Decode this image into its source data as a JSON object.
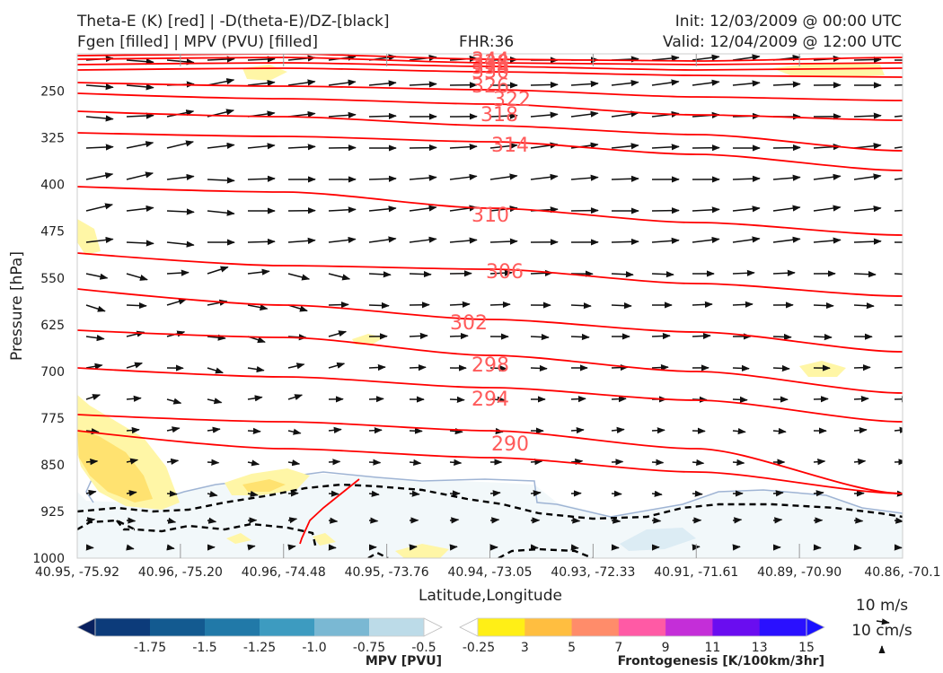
{
  "header": {
    "title_left_1": "Theta-E (K) [red] | -D(theta-E)/DZ-[black]",
    "title_left_2": "Fgen [filled] | MPV (PVU) [filled]",
    "fhr": "FHR:36",
    "init": "Init: 12/03/2009 @ 00:00 UTC",
    "valid": "Valid: 12/04/2009 @ 12:00 UTC"
  },
  "chart_data": {
    "type": "cross-section",
    "xlabel": "Latitude,Longitude",
    "ylabel": "Pressure [hPa]",
    "y_ticks": [
      "250",
      "325",
      "400",
      "475",
      "550",
      "625",
      "700",
      "775",
      "850",
      "925",
      "1000"
    ],
    "y_values": [
      250,
      325,
      400,
      475,
      550,
      625,
      700,
      775,
      850,
      925,
      1000
    ],
    "ylim": [
      1000,
      190
    ],
    "x_ticks": [
      "40.95, -75.92",
      "40.96, -75.20",
      "40.96, -74.48",
      "40.95, -73.76",
      "40.94, -73.05",
      "40.93, -72.33",
      "40.91, -71.61",
      "40.89, -70.90",
      "40.86, -70.1"
    ],
    "theta_e_labels": [
      "344",
      "338",
      "334",
      "330",
      "326",
      "322",
      "318",
      "314",
      "310",
      "306",
      "302",
      "298",
      "294",
      "290"
    ],
    "theta_e_color": "#ff0000",
    "theta_e_label_color": "#ff5a5a",
    "colorbar_mpv": {
      "label": "MPV [PVU]",
      "ticks": [
        "-1.75",
        "-1.5",
        "-1.25",
        "-1.0",
        "-0.75",
        "-0.5",
        "-0.25"
      ],
      "colors": [
        "#08205e",
        "#0c3b7a",
        "#135a90",
        "#2179a8",
        "#3d9bc0",
        "#7ab8d3",
        "#bcdbe8",
        "#ffffff"
      ]
    },
    "colorbar_fgen": {
      "label": "Frontogenesis [K/100km/3hr]",
      "ticks": [
        "3",
        "5",
        "7",
        "9",
        "11",
        "13",
        "15"
      ],
      "colors": [
        "#ffffff",
        "#ffef16",
        "#ffbe40",
        "#ff8c6a",
        "#ff5aa5",
        "#c42ed8",
        "#6a0df0",
        "#2a10ff",
        "#1a12ff"
      ]
    },
    "vector_key": {
      "wind": "10 m/s",
      "vertical": "10 cm/s"
    }
  }
}
